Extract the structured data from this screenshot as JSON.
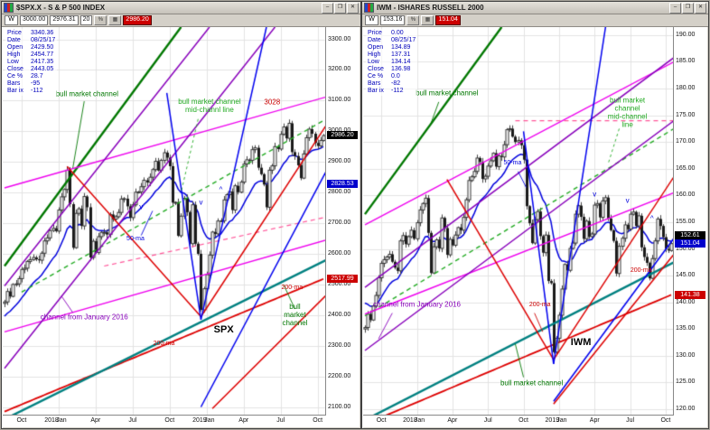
{
  "desktop": {
    "bg": "#a8a49c"
  },
  "windows": [
    {
      "id": "spx",
      "title": "$SPX.X - S & P 500 INDEX",
      "titlebar_buttons": [
        "–",
        "❐",
        "✕"
      ],
      "toolbar_items": [
        {
          "type": "interval",
          "text": "W"
        },
        {
          "type": "field",
          "text": "3000.00"
        },
        {
          "type": "field",
          "text": "2976.31"
        },
        {
          "type": "field",
          "text": "20"
        },
        {
          "type": "btn",
          "text": "%"
        },
        {
          "type": "btn",
          "text": "▦"
        },
        {
          "type": "badge",
          "text": "2986.20"
        }
      ],
      "info_rows": [
        [
          "Price",
          "3340.36"
        ],
        [
          "Date",
          "08/25/17"
        ],
        [
          "Open",
          "2429.50"
        ],
        [
          "High",
          "2454.77"
        ],
        [
          "Low",
          "2417.35"
        ],
        [
          "Close",
          "2443.05"
        ],
        [
          "Ce %",
          "28.7"
        ],
        [
          "Bars",
          "-95"
        ],
        [
          "Bar ix",
          "-112"
        ]
      ],
      "price_tags": [
        {
          "text": "2986.20",
          "price": 2986.2,
          "bg": "#000000"
        },
        {
          "text": "2828.53",
          "price": 2828.53,
          "bg": "#0000cc"
        },
        {
          "text": "2517.99",
          "price": 2517.99,
          "bg": "#cc0000"
        }
      ]
    },
    {
      "id": "iwm",
      "title": "IWM - ISHARES RUSSELL 2000",
      "titlebar_buttons": [
        "–",
        "❐",
        "✕"
      ],
      "toolbar_items": [
        {
          "type": "interval",
          "text": "W"
        },
        {
          "type": "field",
          "text": "153.16"
        },
        {
          "type": "btn",
          "text": "%"
        },
        {
          "type": "btn",
          "text": "▦"
        },
        {
          "type": "badge",
          "text": "151.04"
        }
      ],
      "info_rows": [
        [
          "Price",
          "0.00"
        ],
        [
          "Date",
          "08/25/17"
        ],
        [
          "Open",
          "134.89"
        ],
        [
          "High",
          "137.31"
        ],
        [
          "Low",
          "134.14"
        ],
        [
          "Close",
          "136.98"
        ],
        [
          "Ce %",
          "0.0"
        ],
        [
          "Bars",
          "-82"
        ],
        [
          "Bar ix",
          "-112"
        ]
      ],
      "price_tags": [
        {
          "text": "152.61",
          "price": 152.61,
          "bg": "#000000"
        },
        {
          "text": "151.04",
          "price": 151.04,
          "bg": "#0000cc"
        },
        {
          "text": "141.38",
          "price": 141.38,
          "bg": "#cc0000"
        }
      ]
    }
  ],
  "chart_data": [
    {
      "type": "candlestick",
      "symbol": "SPX",
      "title": "$SPX.X - S & P 500 INDEX",
      "interval": "weekly",
      "x_range": "Aug 2017 - Oct 2019",
      "ylim": [
        2075,
        3340
      ],
      "y_ticks": {
        "start": 2100,
        "end": 3300,
        "step": 100,
        "decimals": 2
      },
      "x_labels": [
        [
          "Oct",
          6
        ],
        [
          "2018",
          16.5
        ],
        [
          "Jan",
          20
        ],
        [
          "Apr",
          32
        ],
        [
          "Jul",
          45
        ],
        [
          "Oct",
          58
        ],
        [
          "2019",
          68.5
        ],
        [
          "Jan",
          72
        ],
        [
          "Apr",
          84
        ],
        [
          "Jul",
          97
        ],
        [
          "Oct",
          110
        ]
      ],
      "grid_weeks": [
        6,
        19,
        32,
        45,
        58,
        71,
        84,
        97,
        110
      ],
      "closes": [
        2443,
        2477,
        2461,
        2500,
        2502,
        2519,
        2549,
        2553,
        2575,
        2581,
        2588,
        2582,
        2579,
        2602,
        2642,
        2652,
        2676,
        2683,
        2674,
        2743,
        2786,
        2810,
        2873,
        2762,
        2620,
        2732,
        2747,
        2691,
        2787,
        2752,
        2588,
        2641,
        2604,
        2656,
        2670,
        2670,
        2663,
        2728,
        2713,
        2721,
        2735,
        2779,
        2780,
        2755,
        2718,
        2760,
        2801,
        2802,
        2819,
        2840,
        2833,
        2850,
        2875,
        2902,
        2872,
        2905,
        2930,
        2914,
        2886,
        2767,
        2768,
        2659,
        2723,
        2781,
        2736,
        2633,
        2760,
        2633,
        2600,
        2417,
        2486,
        2532,
        2596,
        2671,
        2665,
        2707,
        2708,
        2776,
        2793,
        2803,
        2743,
        2822,
        2801,
        2834,
        2893,
        2907,
        2905,
        2940,
        2946,
        2881,
        2860,
        2826,
        2752,
        2873,
        2887,
        2950,
        2942,
        2990,
        3014,
        2977,
        3026,
        2932,
        2919,
        2889,
        2847,
        2926,
        2979,
        3007,
        2992,
        2962,
        2952,
        2970,
        2986
      ],
      "ma50": {
        "seed": 2390,
        "k": 0.12,
        "color": "#0000dd",
        "label": "50-ma"
      },
      "ma200": {
        "start": 2085,
        "end": 2518,
        "color": "#dd0000",
        "label": "200-ma"
      },
      "trend_lines": [
        [
          0,
          2560,
          62,
          3340,
          "#007700",
          2.4,
          0
        ],
        [
          0,
          2060,
          113,
          2580,
          "#008080",
          2.4,
          0
        ],
        [
          6,
          2475,
          113,
          3040,
          "#22aa22",
          1.4,
          1
        ],
        [
          0,
          2815,
          113,
          3112,
          "#ee00ee",
          1.4,
          0
        ],
        [
          0,
          2345,
          113,
          2645,
          "#ee00ee",
          1.4,
          0
        ],
        [
          35,
          2560,
          113,
          2720,
          "#ff5599",
          1.2,
          1
        ],
        [
          0,
          2495,
          72,
          3340,
          "#8800bb",
          1.5,
          0
        ],
        [
          0,
          2226,
          95,
          3340,
          "#8800bb",
          1.5,
          0
        ],
        [
          22,
          2885,
          69,
          2395,
          "#dd0000",
          1.5,
          0
        ],
        [
          69,
          2395,
          113,
          3020,
          "#dd0000",
          1.5,
          0
        ],
        [
          73,
          2095,
          113,
          2465,
          "#dd0000",
          1.5,
          0
        ],
        [
          57,
          3125,
          69,
          2385,
          "#0000ee",
          1.5,
          0
        ],
        [
          69,
          2385,
          92,
          3340,
          "#0000ee",
          1.5,
          0
        ],
        [
          69,
          2100,
          113,
          2870,
          "#0000ee",
          1.5,
          0
        ],
        [
          28,
          3098,
          24,
          2880,
          "#007700",
          0.9,
          0
        ],
        [
          68,
          3040,
          62,
          2800,
          "#22aa22",
          0.9,
          2
        ],
        [
          24,
          2408,
          20,
          2462,
          "#8800bb",
          0.9,
          0
        ],
        [
          48,
          2660,
          52,
          2740,
          "#0000dd",
          0.9,
          0
        ],
        [
          102,
          2420,
          98,
          2500,
          "#007700",
          0.9,
          0
        ]
      ],
      "annotations": [
        [
          29,
          3120,
          "bull market channel",
          "#007700",
          8,
          0
        ],
        [
          72,
          3080,
          "bull market channel\nmid-channl line",
          "#22aa22",
          8,
          0
        ],
        [
          94,
          3091,
          "3028",
          "#cc0000",
          8,
          0
        ],
        [
          28,
          2390,
          "channel from January 2016",
          "#8800bb",
          8,
          0
        ],
        [
          102,
          2398,
          "bull market channel",
          "#007700",
          8,
          0
        ],
        [
          77,
          2351,
          "SPX",
          "#000000",
          11,
          1
        ],
        [
          56,
          2304,
          "200-ma",
          "#cc0000",
          7,
          0
        ],
        [
          46,
          2647,
          "50-ma",
          "#0000dd",
          7,
          0
        ],
        [
          101,
          2489,
          "200-ma",
          "#cc0000",
          7,
          0
        ],
        [
          48,
          2750,
          "v",
          "#0000dd",
          8,
          0
        ],
        [
          69,
          2765,
          "v",
          "#0000dd",
          8,
          0
        ],
        [
          76,
          2806,
          "^",
          "#0000dd",
          8,
          0
        ]
      ]
    },
    {
      "type": "candlestick",
      "symbol": "IWM",
      "title": "IWM - ISHARES RUSSELL 2000",
      "interval": "weekly",
      "x_range": "Aug 2017 - Oct 2019",
      "ylim": [
        119,
        191.5
      ],
      "y_ticks": {
        "start": 120,
        "end": 190,
        "step": 5,
        "decimals": 2
      },
      "x_labels": [
        [
          "Oct",
          6
        ],
        [
          "2018",
          16.5
        ],
        [
          "Jan",
          20
        ],
        [
          "Apr",
          32
        ],
        [
          "Jul",
          45
        ],
        [
          "Oct",
          58
        ],
        [
          "2019",
          68.5
        ],
        [
          "Jan",
          72
        ],
        [
          "Apr",
          84
        ],
        [
          "Jul",
          97
        ],
        [
          "Oct",
          110
        ]
      ],
      "grid_weeks": [
        6,
        19,
        32,
        45,
        58,
        71,
        84,
        97,
        110
      ],
      "closes": [
        135.3,
        137.8,
        136.7,
        139.3,
        141.3,
        144.6,
        147.3,
        148.0,
        148.5,
        149.0,
        147.6,
        146.5,
        145.9,
        151.5,
        152.5,
        150.9,
        152.3,
        153.5,
        151.9,
        154.9,
        157.3,
        158.5,
        159.5,
        153.0,
        145.5,
        150.4,
        151.7,
        150.1,
        155.8,
        153.9,
        148.9,
        151.8,
        150.7,
        152.6,
        154.0,
        153.5,
        155.9,
        159.2,
        162.8,
        163.5,
        164.5,
        167.0,
        166.3,
        163.1,
        163.6,
        165.5,
        166.5,
        167.9,
        165.4,
        167.4,
        167.2,
        169.5,
        172.3,
        172.5,
        171.0,
        170.0,
        170.3,
        169.4,
        166.7,
        158.0,
        154.8,
        151.1,
        155.5,
        157.0,
        152.4,
        149.3,
        152.6,
        144.0,
        143.6,
        130.7,
        133.3,
        137.6,
        142.5,
        147.1,
        146.0,
        150.1,
        151.1,
        156.5,
        158.1,
        156.0,
        151.9,
        155.2,
        152.3,
        152.8,
        158.2,
        158.5,
        155.9,
        159.0,
        159.6,
        155.7,
        153.5,
        151.5,
        145.4,
        150.5,
        152.0,
        154.5,
        153.7,
        156.5,
        156.9,
        154.3,
        156.2,
        150.3,
        148.5,
        147.4,
        144.5,
        148.2,
        151.5,
        155.6,
        154.3,
        152.2,
        150.0,
        149.7,
        151.0
      ],
      "ma50": {
        "seed": 140.5,
        "k": 0.12,
        "color": "#0000dd",
        "label": "50-ma"
      },
      "ma200": {
        "start": 117.2,
        "end": 141.4,
        "color": "#dd0000",
        "label": "200-ma"
      },
      "trend_lines": [
        [
          0,
          156.5,
          50,
          191.5,
          "#007700",
          2.4,
          0
        ],
        [
          0,
          118.0,
          113,
          147.5,
          "#008080",
          2.4,
          0
        ],
        [
          0,
          137.5,
          113,
          172.5,
          "#22aa22",
          1.4,
          1
        ],
        [
          0,
          154.5,
          113,
          185.0,
          "#ee00ee",
          1.4,
          0
        ],
        [
          0,
          137.8,
          113,
          160.5,
          "#ee00ee",
          1.4,
          0
        ],
        [
          55,
          174.0,
          113,
          174.0,
          "#ff5599",
          1.2,
          1
        ],
        [
          0,
          142.8,
          113,
          185.8,
          "#8800bb",
          1.5,
          0
        ],
        [
          0,
          131.0,
          113,
          174.0,
          "#8800bb",
          1.5,
          0
        ],
        [
          30,
          163.0,
          69,
          129.3,
          "#dd0000",
          1.5,
          0
        ],
        [
          69,
          129.3,
          113,
          163.5,
          "#dd0000",
          1.5,
          0
        ],
        [
          69,
          121.0,
          113,
          149.0,
          "#dd0000",
          1.5,
          0
        ],
        [
          58,
          172.0,
          69,
          128.5,
          "#0000ee",
          1.5,
          0
        ],
        [
          69,
          128.5,
          88,
          191.5,
          "#0000ee",
          1.5,
          0
        ],
        [
          69,
          121.5,
          113,
          152.0,
          "#0000ee",
          1.5,
          0
        ],
        [
          27,
          177.5,
          24,
          173.3,
          "#007700",
          0.9,
          0
        ],
        [
          93,
          172.5,
          89,
          166.0,
          "#22aa22",
          0.9,
          2
        ],
        [
          10,
          138.0,
          5,
          133.2,
          "#8800bb",
          0.9,
          0
        ],
        [
          56,
          164.5,
          59,
          161.5,
          "#0000dd",
          0.9,
          0
        ],
        [
          58,
          126.0,
          55,
          132.2,
          "#007700",
          0.9,
          0
        ],
        [
          62,
          138.0,
          65,
          134.5,
          "#cc0000",
          0.9,
          0
        ]
      ],
      "annotations": [
        [
          30,
          179.0,
          "bull market channel",
          "#007700",
          8,
          0
        ],
        [
          96,
          175.4,
          "bull market channel\nmid-channel line",
          "#22aa22",
          8,
          0
        ],
        [
          19,
          139.4,
          "channel from January 2016",
          "#8800bb",
          8,
          0
        ],
        [
          61,
          124.7,
          "bull market channel",
          "#007700",
          8,
          0
        ],
        [
          79,
          132.6,
          "IWM",
          "#000000",
          11,
          1
        ],
        [
          54,
          165.9,
          "50-ma",
          "#0000dd",
          7,
          0
        ],
        [
          64,
          139.4,
          "200-ma",
          "#cc0000",
          7,
          0
        ],
        [
          101,
          145.8,
          "200-ma",
          "#cc0000",
          7,
          0
        ],
        [
          84,
          160.0,
          "v",
          "#0000dd",
          8,
          0
        ],
        [
          96,
          158.8,
          "v",
          "#0000dd",
          8,
          0
        ],
        [
          105,
          155.5,
          "^",
          "#0000dd",
          8,
          0
        ]
      ]
    }
  ]
}
